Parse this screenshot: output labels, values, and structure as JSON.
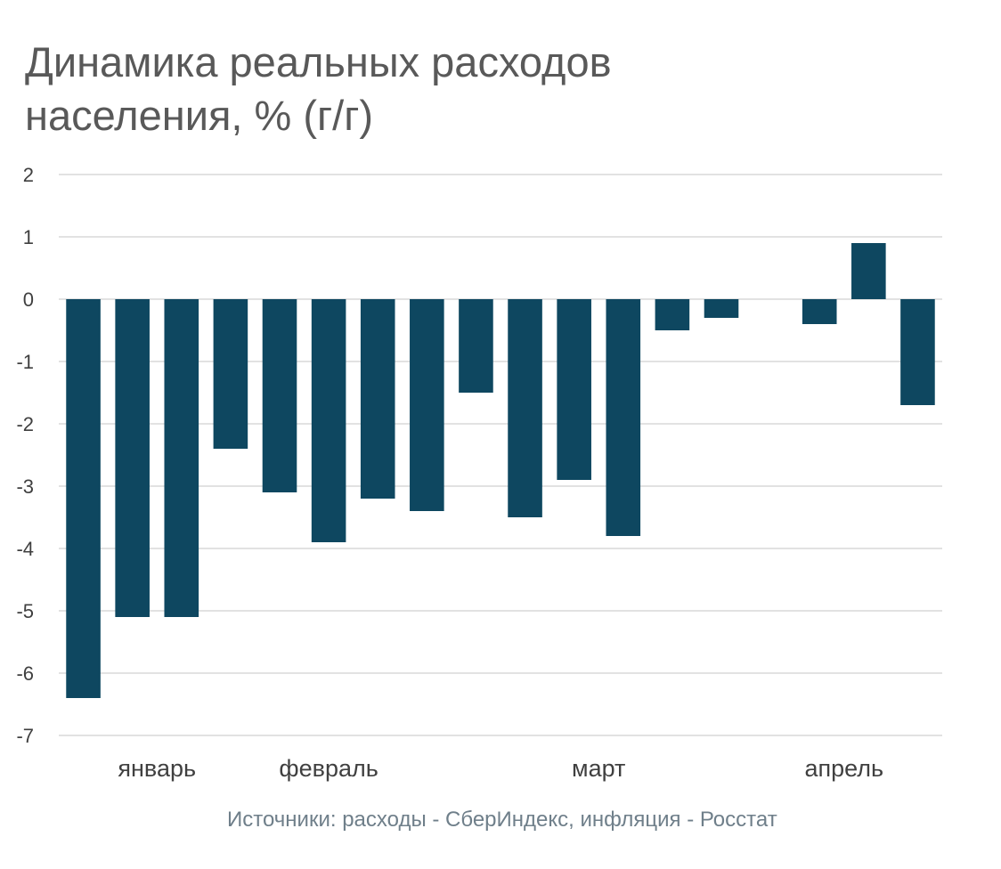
{
  "chart_data": {
    "type": "bar",
    "title": [
      "Динамика реальных расходов",
      "населения, % (г/г)"
    ],
    "xlabel": "",
    "ylabel": "",
    "ylim": [
      -7,
      2
    ],
    "yticks": [
      2,
      1,
      0,
      -1,
      -2,
      -3,
      -4,
      -5,
      -6,
      -7
    ],
    "grid": true,
    "bar_color": "#0e4760",
    "grid_color": "#d9d9d9",
    "values": [
      -6.4,
      -5.1,
      -5.1,
      -2.4,
      -3.1,
      -3.9,
      -3.2,
      -3.4,
      -1.5,
      -3.5,
      -2.9,
      -3.8,
      -0.5,
      -0.3,
      0,
      -0.4,
      0.9,
      -1.7
    ],
    "month_labels": [
      {
        "label": "январь",
        "slot": 1.5
      },
      {
        "label": "февраль",
        "slot": 5
      },
      {
        "label": "март",
        "slot": 10.5
      },
      {
        "label": "апрель",
        "slot": 15.5
      }
    ]
  },
  "source": "Источники: расходы - СберИндекс,  инфляция - Росстат"
}
